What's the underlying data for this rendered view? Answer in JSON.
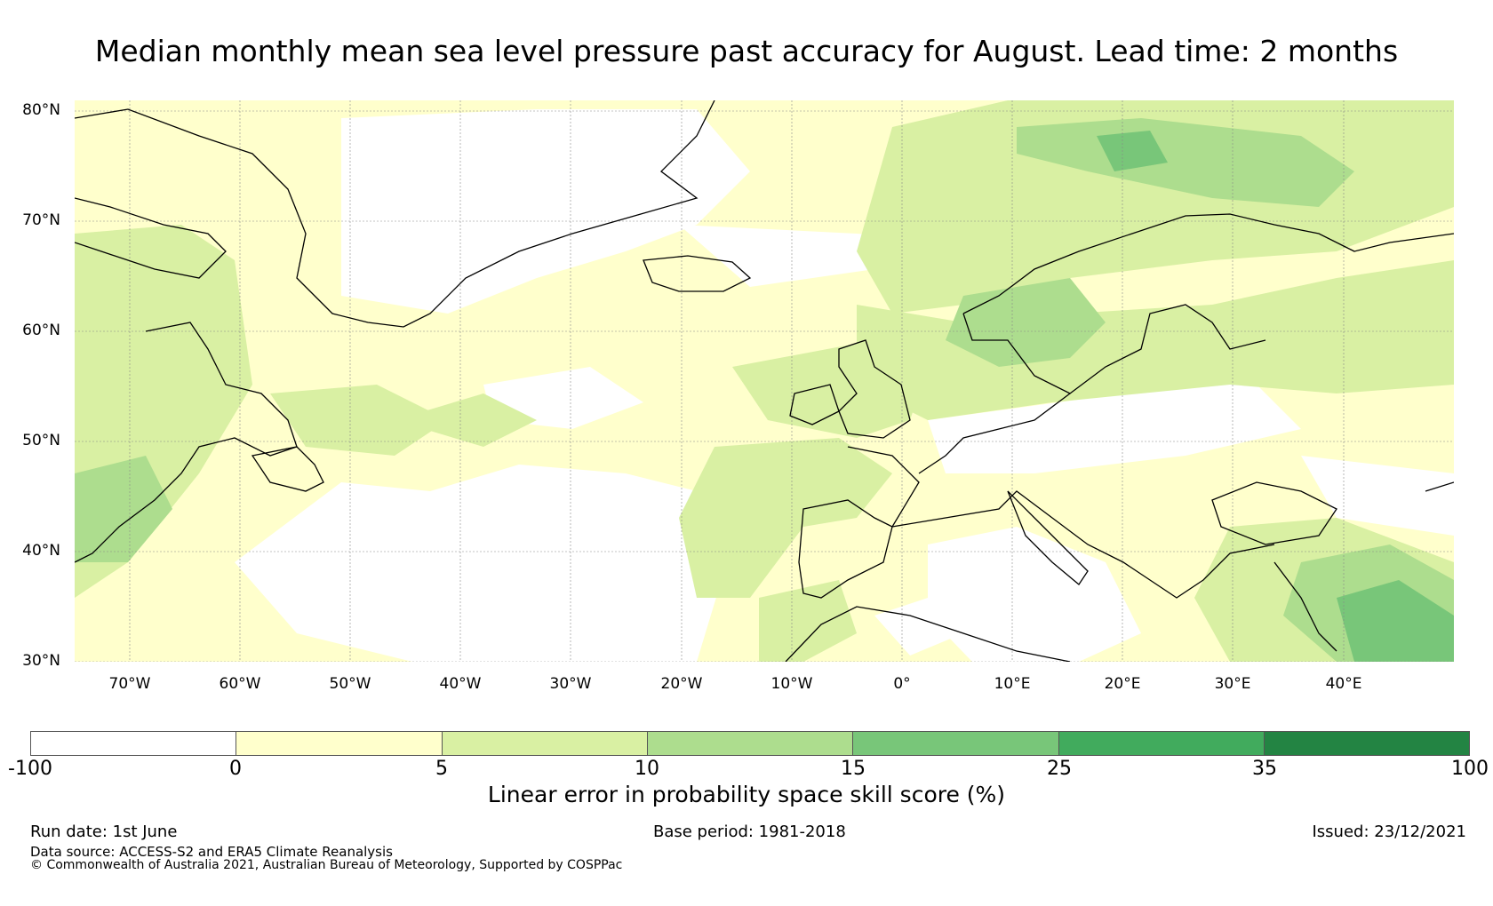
{
  "title": "Median monthly mean sea level pressure past accuracy for August. Lead time: 2 months",
  "map": {
    "lat_labels": [
      "80°N",
      "70°N",
      "60°N",
      "50°N",
      "40°N",
      "30°N"
    ],
    "lon_labels": [
      "70°W",
      "60°W",
      "50°W",
      "40°W",
      "30°W",
      "20°W",
      "10°W",
      "0°",
      "10°E",
      "20°E",
      "30°E",
      "40°E"
    ],
    "lat_values": [
      80,
      70,
      60,
      50,
      40,
      30
    ],
    "lon_values": [
      -70,
      -60,
      -50,
      -40,
      -30,
      -20,
      -10,
      0,
      10,
      20,
      30,
      40
    ],
    "extent": {
      "lon_min": -75,
      "lon_max": 50,
      "lat_min": 30,
      "lat_max": 81
    },
    "gridlines": true,
    "coastline_color": "#000000"
  },
  "colorbar": {
    "bounds_labels": [
      "-100",
      "0",
      "5",
      "10",
      "15",
      "25",
      "35",
      "100"
    ],
    "colors": [
      "#ffffff",
      "#ffffcc",
      "#d9f0a3",
      "#addd8e",
      "#78c679",
      "#41ab5d",
      "#238443"
    ],
    "label": "Linear error in probability space skill score (%)"
  },
  "footer": {
    "run_date": "Run date: 1st June",
    "base_period": "Base period: 1981-2018",
    "issued": "Issued: 23/12/2021",
    "data_source": "Data source: ACCESS-S2 and ERA5 Climate Reanalysis",
    "copyright": "© Commonwealth of Australia 2021, Australian Bureau of Meteorology, Supported by COSPPac"
  }
}
